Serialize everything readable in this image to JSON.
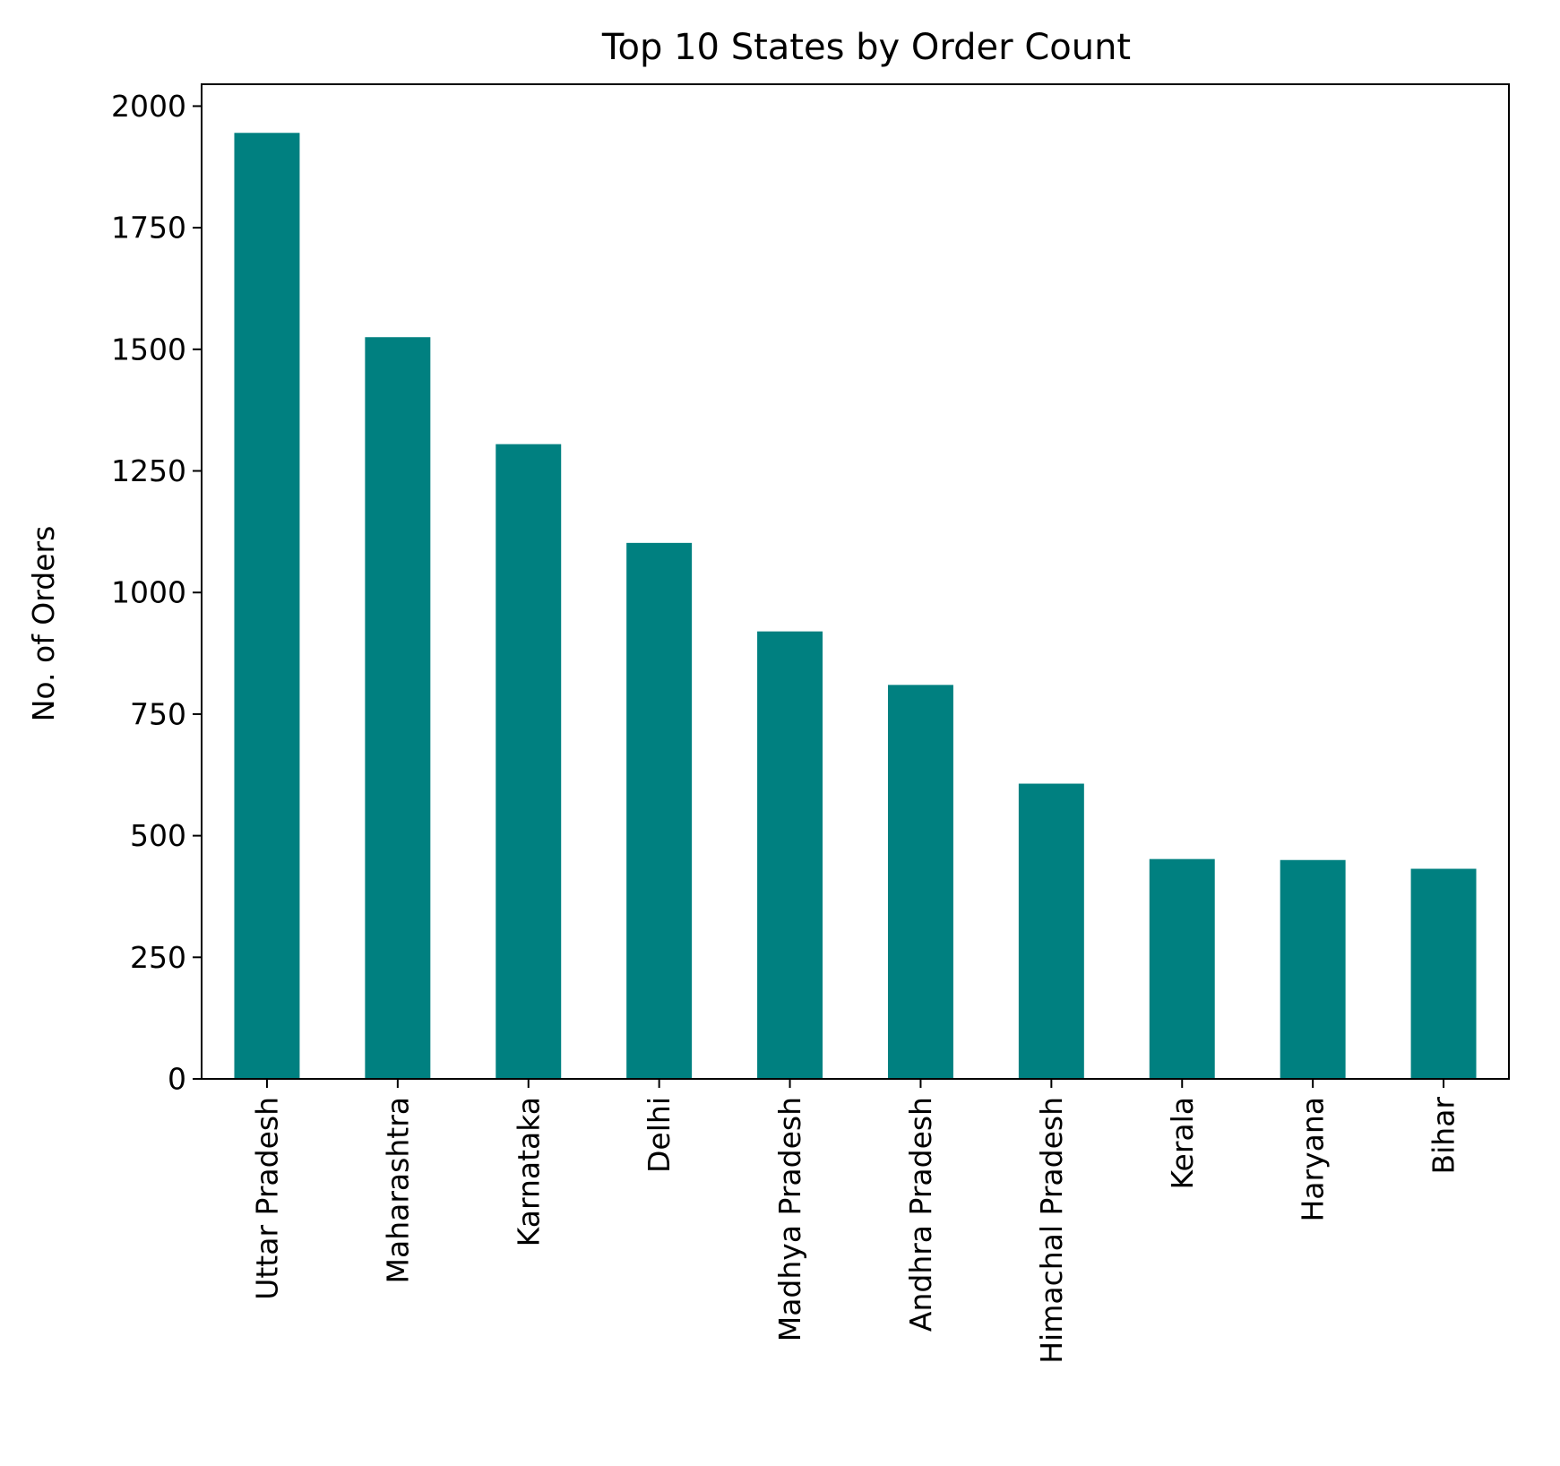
{
  "chart_data": {
    "type": "bar",
    "title": "Top 10 States by Order Count",
    "xlabel": "",
    "ylabel": "No. of Orders",
    "categories": [
      "Uttar Pradesh",
      "Maharashtra",
      "Karnataka",
      "Delhi",
      "Madhya Pradesh",
      "Andhra Pradesh",
      "Himachal Pradesh",
      "Kerala",
      "Haryana",
      "Bihar"
    ],
    "values": [
      1945,
      1525,
      1305,
      1102,
      920,
      810,
      607,
      452,
      450,
      432
    ],
    "ylim": [
      0,
      2045
    ],
    "yticks": [
      0,
      250,
      500,
      750,
      1000,
      1250,
      1500,
      1750,
      2000
    ],
    "bar_color": "#008080",
    "grid": false,
    "legend": "none"
  }
}
